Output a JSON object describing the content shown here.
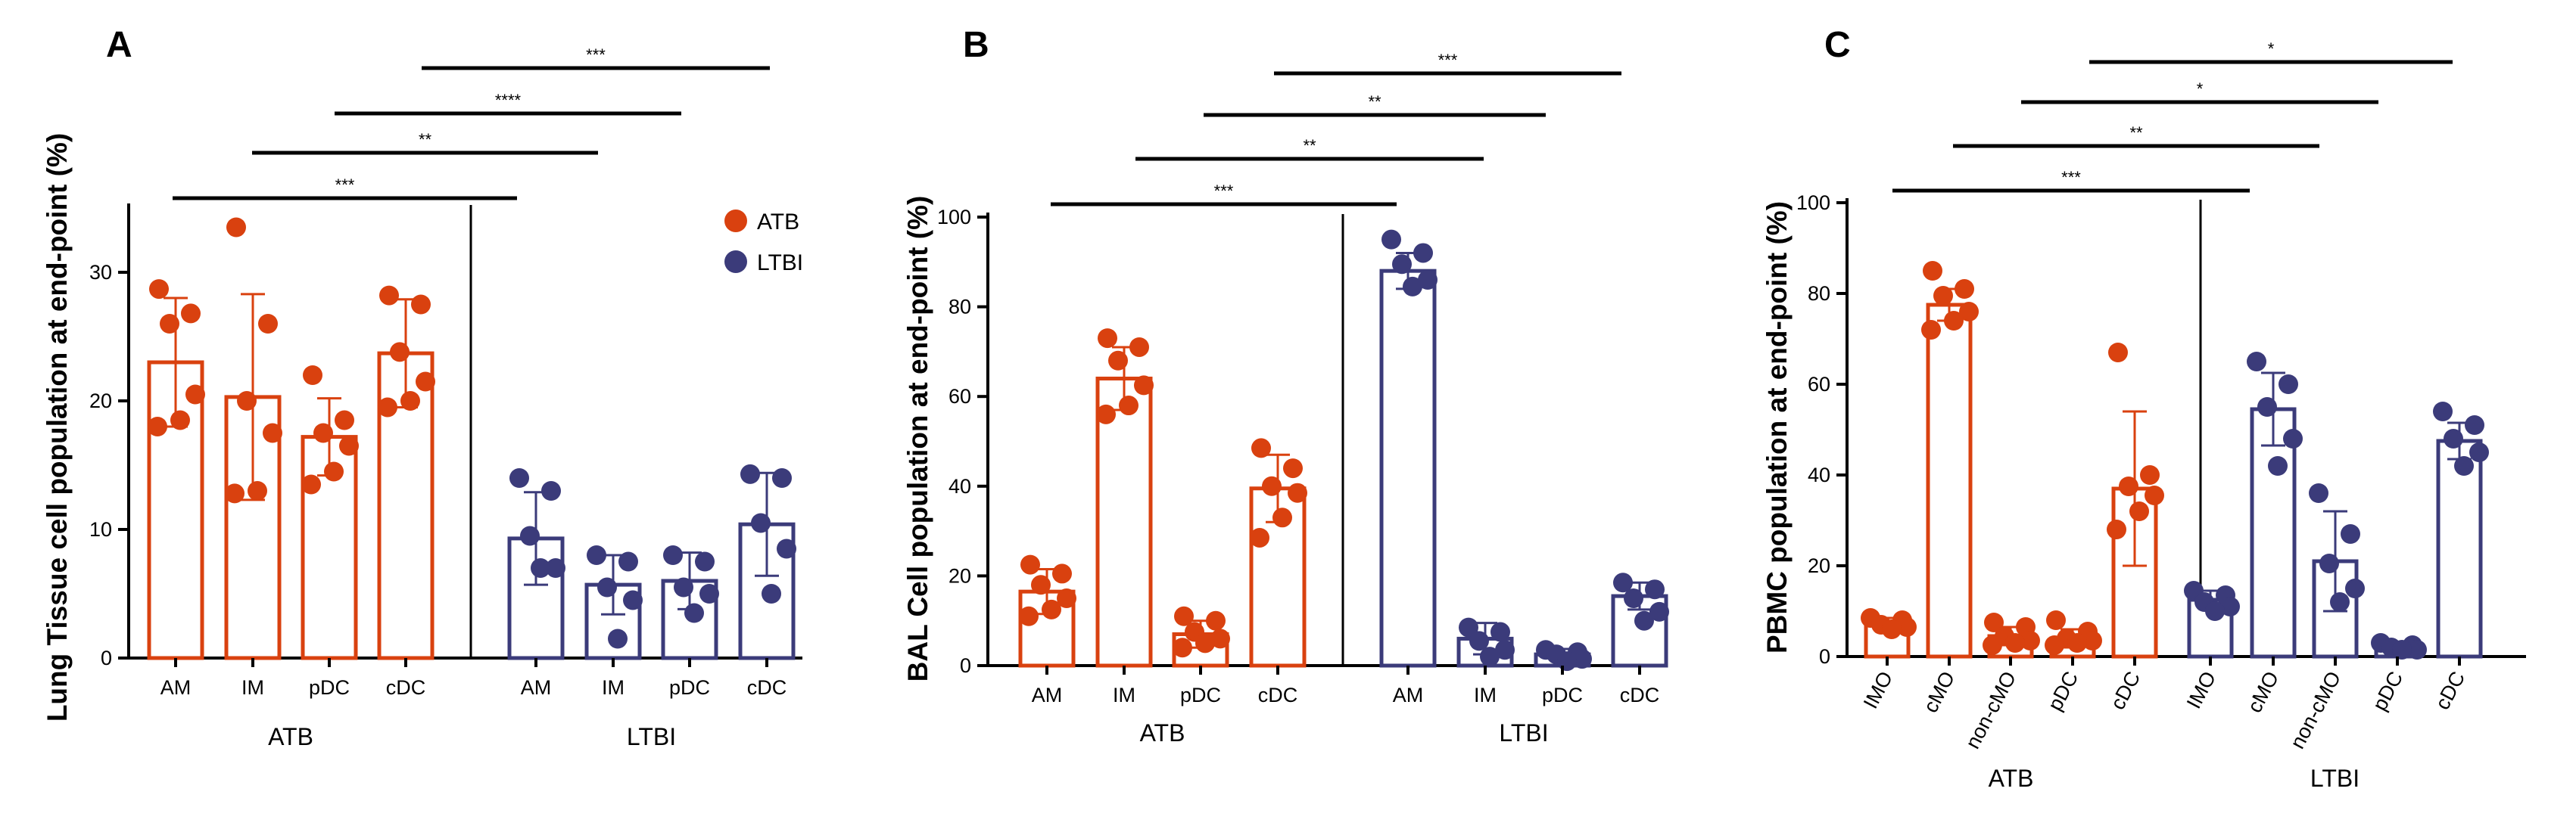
{
  "colors": {
    "ATB": "#d9410f",
    "LTBI": "#3b3b7a"
  },
  "legend": [
    {
      "name": "ATB",
      "color": "#d9410f"
    },
    {
      "name": "LTBI",
      "color": "#3b3b7a"
    }
  ],
  "chart_data": [
    {
      "type": "bar",
      "panel": "A",
      "ylabel": "Lung Tissue cell population at end-point (%)",
      "ylim": [
        0,
        35
      ],
      "yticks": [
        0,
        10,
        20,
        30
      ],
      "groups": [
        {
          "name": "ATB",
          "categories": [
            {
              "label": "AM",
              "mean": 23.0,
              "sd": 5.0,
              "points": [
                28.7,
                26.8,
                26.0,
                20.5,
                18.5,
                18.0
              ]
            },
            {
              "label": "IM",
              "mean": 20.3,
              "sd": 8.0,
              "points": [
                33.5,
                26.0,
                20.0,
                17.5,
                13.0,
                12.8
              ]
            },
            {
              "label": "pDC",
              "mean": 17.2,
              "sd": 3.0,
              "points": [
                22.0,
                18.5,
                17.5,
                16.5,
                14.5,
                13.5
              ]
            },
            {
              "label": "cDC",
              "mean": 23.7,
              "sd": 4.2,
              "points": [
                28.2,
                27.5,
                23.8,
                21.5,
                20.0,
                19.5
              ]
            }
          ]
        },
        {
          "name": "LTBI",
          "categories": [
            {
              "label": "AM",
              "mean": 9.3,
              "sd": 3.6,
              "points": [
                14.0,
                13.0,
                9.5,
                7.0,
                7.0
              ]
            },
            {
              "label": "IM",
              "mean": 5.7,
              "sd": 2.3,
              "points": [
                8.0,
                7.5,
                5.5,
                4.5,
                1.5
              ]
            },
            {
              "label": "pDC",
              "mean": 6.0,
              "sd": 2.2,
              "points": [
                8.0,
                7.5,
                5.5,
                5.0,
                3.5
              ]
            },
            {
              "label": "cDC",
              "mean": 10.4,
              "sd": 4.0,
              "points": [
                14.3,
                14.0,
                10.5,
                8.5,
                5.0
              ]
            }
          ]
        }
      ],
      "comparisons": [
        {
          "from": "ATB.AM",
          "to": "LTBI.AM",
          "label": "***"
        },
        {
          "from": "ATB.IM",
          "to": "LTBI.IM",
          "label": "**"
        },
        {
          "from": "ATB.pDC",
          "to": "LTBI.pDC",
          "label": "****"
        },
        {
          "from": "ATB.cDC",
          "to": "LTBI.cDC",
          "label": "***"
        }
      ]
    },
    {
      "type": "bar",
      "panel": "B",
      "ylabel": "BAL Cell population at end-point (%)",
      "ylim": [
        0,
        100
      ],
      "yticks": [
        0,
        20,
        40,
        60,
        80,
        100
      ],
      "groups": [
        {
          "name": "ATB",
          "categories": [
            {
              "label": "AM",
              "mean": 16.5,
              "sd": 5.0,
              "points": [
                22.5,
                20.5,
                18.0,
                15.0,
                12.5,
                11.0
              ]
            },
            {
              "label": "IM",
              "mean": 64.0,
              "sd": 7.0,
              "points": [
                73.0,
                71.0,
                68.0,
                62.5,
                58.0,
                56.0
              ]
            },
            {
              "label": "pDC",
              "mean": 7.0,
              "sd": 3.0,
              "points": [
                11.0,
                10.0,
                7.5,
                6.0,
                5.0,
                4.0
              ]
            },
            {
              "label": "cDC",
              "mean": 39.5,
              "sd": 7.5,
              "points": [
                48.5,
                44.0,
                40.0,
                38.5,
                33.0,
                28.5
              ]
            }
          ]
        },
        {
          "name": "LTBI",
          "categories": [
            {
              "label": "AM",
              "mean": 88.0,
              "sd": 4.0,
              "points": [
                95.0,
                92.0,
                89.5,
                86.0,
                84.5
              ]
            },
            {
              "label": "IM",
              "mean": 6.0,
              "sd": 3.5,
              "points": [
                8.5,
                7.5,
                5.5,
                3.5,
                2.0
              ]
            },
            {
              "label": "pDC",
              "mean": 2.5,
              "sd": 1.2,
              "points": [
                3.5,
                3.0,
                2.5,
                1.5,
                1.0
              ]
            },
            {
              "label": "cDC",
              "mean": 15.5,
              "sd": 3.0,
              "points": [
                18.5,
                17.0,
                15.0,
                12.0,
                10.0
              ]
            }
          ]
        }
      ],
      "comparisons": [
        {
          "from": "ATB.AM",
          "to": "LTBI.AM",
          "label": "***"
        },
        {
          "from": "ATB.IM",
          "to": "LTBI.IM",
          "label": "**"
        },
        {
          "from": "ATB.pDC",
          "to": "LTBI.pDC",
          "label": "**"
        },
        {
          "from": "ATB.cDC",
          "to": "LTBI.cDC",
          "label": "***"
        }
      ]
    },
    {
      "type": "bar",
      "panel": "C",
      "ylabel": "PBMC population at end-point (%)",
      "ylim": [
        0,
        100
      ],
      "yticks": [
        0,
        20,
        40,
        60,
        80,
        100
      ],
      "groups": [
        {
          "name": "ATB",
          "categories": [
            {
              "label": "IMO",
              "mean": 7.0,
              "sd": 1.5,
              "points": [
                8.5,
                8.0,
                7.0,
                6.5,
                6.0
              ]
            },
            {
              "label": "cMO",
              "mean": 77.5,
              "sd": 3.5,
              "points": [
                85.0,
                81.0,
                79.5,
                76.0,
                74.0,
                72.0
              ]
            },
            {
              "label": "non-cMO",
              "mean": 4.5,
              "sd": 2.0,
              "points": [
                7.5,
                6.5,
                4.5,
                3.5,
                3.0,
                2.5
              ]
            },
            {
              "label": "pDC",
              "mean": 4.0,
              "sd": 2.0,
              "points": [
                8.0,
                5.5,
                4.0,
                3.5,
                3.0,
                2.5
              ]
            },
            {
              "label": "cDC",
              "mean": 37.0,
              "sd": 17.0,
              "points": [
                67.0,
                40.0,
                37.5,
                35.5,
                32.0,
                28.0
              ]
            }
          ]
        },
        {
          "name": "LTBI",
          "categories": [
            {
              "label": "IMO",
              "mean": 12.5,
              "sd": 2.0,
              "points": [
                14.5,
                13.5,
                12.0,
                11.0,
                10.0
              ]
            },
            {
              "label": "cMO",
              "mean": 54.5,
              "sd": 8.0,
              "points": [
                65.0,
                60.0,
                55.0,
                48.0,
                42.0
              ]
            },
            {
              "label": "non-cMO",
              "mean": 21.0,
              "sd": 11.0,
              "points": [
                36.0,
                27.0,
                20.5,
                15.0,
                12.0
              ]
            },
            {
              "label": "pDC",
              "mean": 2.0,
              "sd": 0.8,
              "points": [
                3.0,
                2.5,
                2.0,
                1.5,
                1.5
              ]
            },
            {
              "label": "cDC",
              "mean": 47.5,
              "sd": 4.0,
              "points": [
                54.0,
                51.0,
                48.0,
                45.0,
                42.0
              ]
            }
          ]
        }
      ],
      "comparisons": [
        {
          "from": "ATB.IMO",
          "to": "LTBI.IMO",
          "label": "***"
        },
        {
          "from": "ATB.cMO",
          "to": "LTBI.cMO",
          "label": "**"
        },
        {
          "from": "ATB.non-cMO",
          "to": "LTBI.non-cMO",
          "label": "*"
        },
        {
          "from": "ATB.pDC",
          "to": "LTBI.pDC",
          "label": "*"
        }
      ]
    }
  ]
}
